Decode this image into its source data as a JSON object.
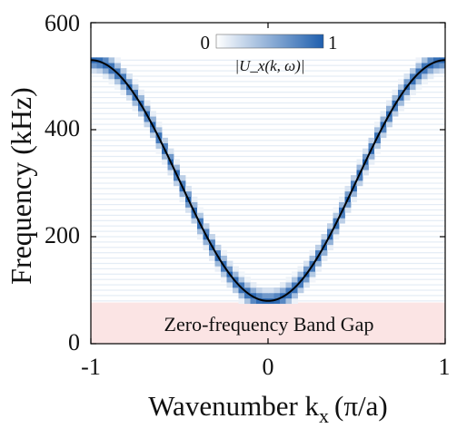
{
  "chart_data": {
    "type": "heatmap",
    "title": "",
    "xlabel": "Wavenumber k",
    "xlabel_subscript": "x",
    "xlabel_unit": "(π/a)",
    "ylabel": "Frequency (kHz)",
    "xlim": [
      -1,
      1
    ],
    "ylim": [
      0,
      600
    ],
    "x_ticks": [
      "-1",
      "0",
      "1"
    ],
    "y_ticks": [
      "0",
      "200",
      "400",
      "600"
    ],
    "x_tick_values": [
      -1,
      0,
      1
    ],
    "y_tick_values": [
      0,
      200,
      400,
      600
    ],
    "colorbar": {
      "min_label": "0",
      "max_label": "1",
      "label": "|U_x(k, ω)|",
      "color_low": "#ffffff",
      "color_high": "#1f5fae"
    },
    "band_gap": {
      "label": "Zero-frequency Band Gap",
      "f_min": 0,
      "f_max": 77,
      "color": "#fbe4e4"
    },
    "dispersion_curve": {
      "description_formula": "f = f0 + (f1 - f0) * sin^2(pi*k/2)",
      "f_at_k0": 80,
      "f_at_k1": 530,
      "color": "#000000"
    },
    "heatmap_frequency_rows": {
      "start": 80,
      "end": 535,
      "step": 10
    },
    "grid": false,
    "legend": "colorbar-top-right"
  }
}
